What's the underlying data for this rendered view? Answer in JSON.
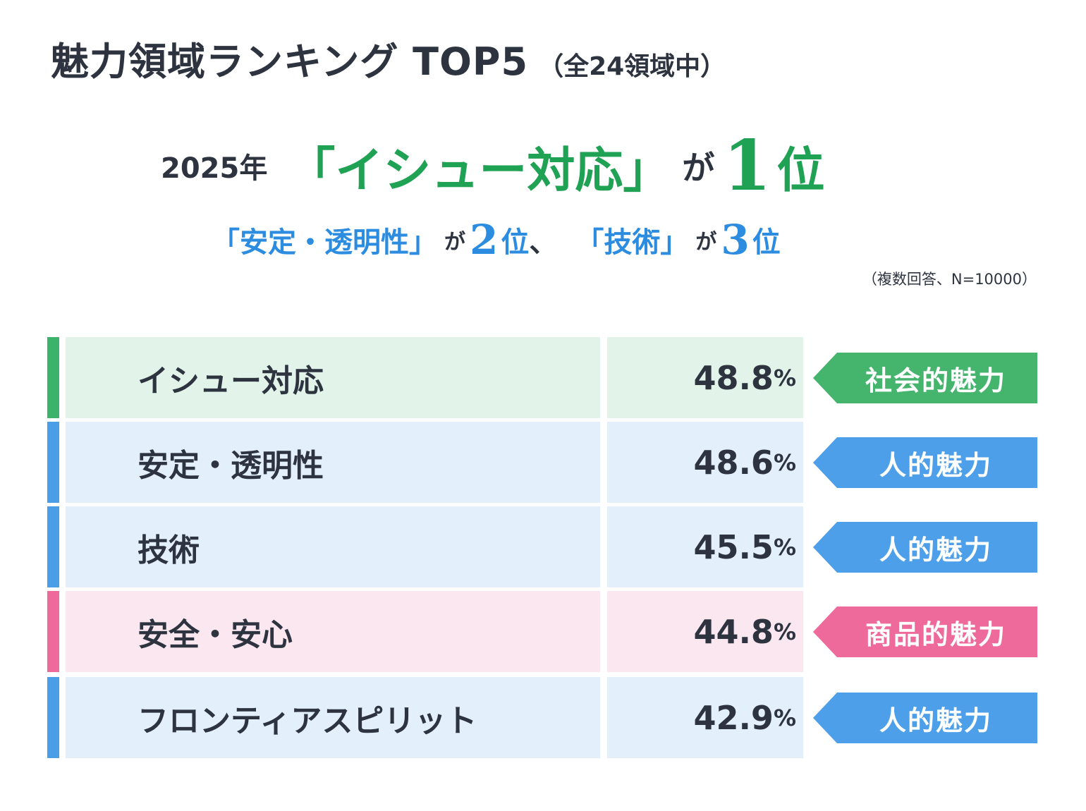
{
  "title": "魅力領域ランキング TOP5",
  "title_sub": "（全24領域中）",
  "headline": {
    "year": "2025年",
    "first_item": "「イシュー対応」",
    "ga": "が",
    "first_rank": "1",
    "pos": "位",
    "second_item": "「安定・透明性」",
    "second_rank": "2",
    "separator": "、",
    "third_item": "「技術」",
    "third_rank": "3"
  },
  "note": "（複数回答、N=10000）",
  "colors": {
    "text": "#2d3440",
    "green": "#1fa254",
    "blue": "#2c8ce0",
    "pink": "#ee6a9a"
  },
  "chart_data": {
    "type": "table",
    "title": "魅力領域ランキング TOP5",
    "unit": "%",
    "rows": [
      {
        "name": "イシュー対応",
        "value": 48.8,
        "value_label": "48.8",
        "category": "社会的魅力",
        "theme": "green"
      },
      {
        "name": "安定・透明性",
        "value": 48.6,
        "value_label": "48.6",
        "category": "人的魅力",
        "theme": "blue"
      },
      {
        "name": "技術",
        "value": 45.5,
        "value_label": "45.5",
        "category": "人的魅力",
        "theme": "blue"
      },
      {
        "name": "安全・安心",
        "value": 44.8,
        "value_label": "44.8",
        "category": "商品的魅力",
        "theme": "pink"
      },
      {
        "name": "フロンティアスピリット",
        "value": 42.9,
        "value_label": "42.9",
        "category": "人的魅力",
        "theme": "blue"
      }
    ]
  }
}
